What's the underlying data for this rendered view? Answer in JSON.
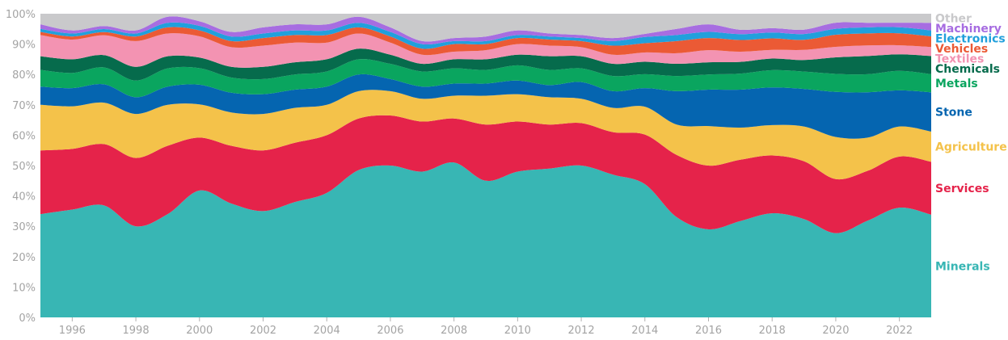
{
  "chart_data": {
    "type": "area",
    "stacking": "percent",
    "x": [
      1995,
      1996,
      1997,
      1998,
      1999,
      2000,
      2001,
      2002,
      2003,
      2004,
      2005,
      2006,
      2007,
      2008,
      2009,
      2010,
      2011,
      2012,
      2013,
      2014,
      2015,
      2016,
      2017,
      2018,
      2019,
      2020,
      2021,
      2022,
      2023
    ],
    "xticks": [
      1996,
      1998,
      2000,
      2002,
      2004,
      2006,
      2008,
      2010,
      2012,
      2014,
      2016,
      2018,
      2020,
      2022
    ],
    "xtick_labels": [
      "1996",
      "1998",
      "2000",
      "2002",
      "2004",
      "2006",
      "2008",
      "2010",
      "2012",
      "2014",
      "2016",
      "2018",
      "2020",
      "2022"
    ],
    "xlim": [
      1995,
      2023
    ],
    "yticks": [
      0,
      10,
      20,
      30,
      40,
      50,
      60,
      70,
      80,
      90,
      100
    ],
    "ytick_labels": [
      "0%",
      "10%",
      "20%",
      "30%",
      "40%",
      "50%",
      "60%",
      "70%",
      "80%",
      "90%",
      "100%"
    ],
    "ylim": [
      0,
      100
    ],
    "grid": false,
    "legend_placement": "right, labels aligned with series",
    "series": [
      {
        "name": "Minerals",
        "color": "#38b6b4",
        "values": [
          34,
          35.5,
          36.5,
          30,
          34,
          42,
          37.5,
          35,
          38,
          41,
          48.5,
          50,
          48,
          51,
          45,
          48,
          49,
          50,
          47,
          43,
          33,
          29,
          33,
          36,
          34,
          28,
          32,
          36.5,
          34
        ]
      },
      {
        "name": "Services",
        "color": "#e5234a",
        "values": [
          21,
          20,
          20,
          22.5,
          22.5,
          17.5,
          19,
          20,
          19.5,
          19,
          17,
          16.5,
          16.5,
          14.5,
          18.5,
          16.5,
          14.5,
          14,
          14,
          16,
          20.5,
          21,
          21,
          20,
          20,
          18,
          16.5,
          17,
          17.5
        ]
      },
      {
        "name": "Agriculture",
        "color": "#f4c24a",
        "values": [
          15,
          14,
          13.5,
          14.5,
          13.5,
          11,
          11,
          12,
          11.5,
          10,
          9,
          8,
          7.5,
          7.5,
          9.5,
          9,
          9,
          8,
          8,
          9,
          10,
          13,
          11,
          10.5,
          12,
          14,
          11,
          10,
          10
        ]
      },
      {
        "name": "Stone",
        "color": "#0565b0",
        "values": [
          6,
          6,
          6,
          5.5,
          6,
          6.5,
          6.5,
          6.5,
          6,
          6,
          5.5,
          4,
          4,
          4,
          4,
          4.5,
          4,
          5.5,
          5.5,
          6,
          11,
          12,
          13,
          13,
          13,
          15,
          15,
          12,
          13
        ]
      },
      {
        "name": "Metals",
        "color": "#0aa55f",
        "values": [
          5.5,
          5,
          5.5,
          5.5,
          6,
          5.5,
          5,
          5,
          5,
          5,
          5,
          5,
          5,
          5,
          4.5,
          5,
          5,
          4.5,
          5,
          4.5,
          5,
          5,
          5.5,
          6,
          6,
          6,
          6,
          6.5,
          6
        ]
      },
      {
        "name": "Chemicals",
        "color": "#066b4c",
        "values": [
          4.5,
          4.5,
          4,
          4.5,
          4,
          3.5,
          3.5,
          4,
          4,
          4,
          3.5,
          3,
          2.5,
          3,
          3.5,
          3.5,
          4.5,
          4,
          4,
          4,
          4,
          4,
          4,
          4,
          4,
          5.5,
          6,
          5.5,
          6
        ]
      },
      {
        "name": "Textiles",
        "color": "#f393b2",
        "values": [
          7,
          6.5,
          6.5,
          8.5,
          7.5,
          7,
          6.5,
          7,
          6.5,
          5.5,
          5,
          4,
          3,
          2.5,
          3,
          3.5,
          3.5,
          3,
          3,
          3,
          3.5,
          4,
          3.5,
          3,
          3.5,
          3.5,
          3.5,
          3,
          3
        ]
      },
      {
        "name": "Vehicles",
        "color": "#eb5a35",
        "values": [
          1,
          1,
          1,
          1.5,
          2,
          2,
          2,
          2.5,
          2.5,
          2.5,
          2,
          2,
          2,
          2.5,
          2,
          2,
          2,
          2,
          3,
          3,
          4,
          4,
          4,
          4,
          3.5,
          4,
          4,
          4,
          3.5
        ]
      },
      {
        "name": "Electronics",
        "color": "#21a0dc",
        "values": [
          1,
          1,
          1,
          1,
          1.5,
          1.5,
          1.5,
          1.5,
          1.5,
          1.5,
          1.5,
          1.5,
          1.5,
          1,
          1,
          1,
          1,
          1,
          1.5,
          2,
          2,
          2,
          2,
          2,
          2,
          2,
          2,
          2,
          2
        ]
      },
      {
        "name": "Machinery",
        "color": "#a76de1",
        "values": [
          1.5,
          1,
          1,
          1,
          2,
          1.5,
          1.5,
          2,
          2,
          2,
          2,
          1.5,
          1,
          1,
          1.5,
          1.5,
          1,
          1,
          1,
          1,
          2,
          2.5,
          1.5,
          1.5,
          1.5,
          2,
          1.5,
          1.5,
          2.5
        ]
      },
      {
        "name": "Other",
        "color": "#c9c9cb",
        "values": [
          3.5,
          5.5,
          4,
          5.5,
          1,
          2.5,
          6,
          4.5,
          3.5,
          3.5,
          1,
          4.5,
          9,
          8,
          7.5,
          5.5,
          6.5,
          7,
          8,
          6.5,
          5,
          3.5,
          5.5,
          5,
          5.5,
          3,
          3,
          3,
          3
        ]
      }
    ]
  }
}
